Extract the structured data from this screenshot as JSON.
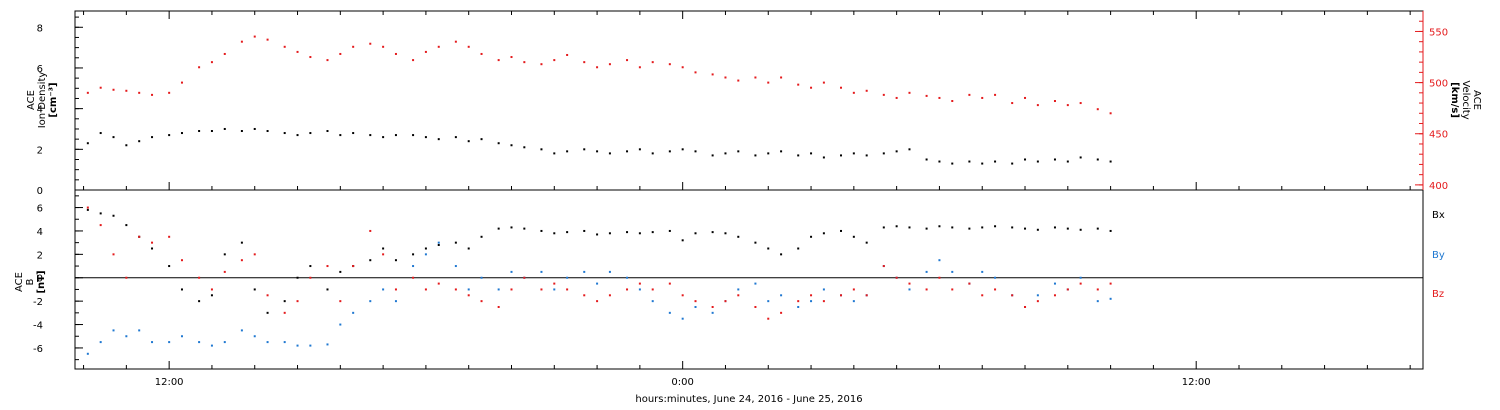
{
  "colors": {
    "black": "#000000",
    "red": "#e41a1c",
    "blue": "#1f78d1"
  },
  "chart_data": [
    {
      "type": "scatter",
      "panel": "top",
      "ylabel_left": [
        "ACE",
        "Ion Density",
        "[cm⁻³]"
      ],
      "ylabel_right": [
        "ACE",
        "Velocity",
        "[km/s]"
      ],
      "x_unit": "hours after June 24, 2016 00:00",
      "xlim": [
        9.8,
        41.3
      ],
      "ylim_left": [
        0,
        8.8
      ],
      "yticks_left": [
        0,
        2,
        4,
        6,
        8
      ],
      "ylim_right": [
        395,
        570
      ],
      "yticks_right": [
        400,
        450,
        500,
        550
      ],
      "series": [
        {
          "quantity": "density",
          "axis": "left",
          "color": "#000000",
          "x": [
            10.1,
            10.4,
            10.7,
            11.0,
            11.3,
            11.6,
            12.0,
            12.3,
            12.7,
            13.0,
            13.3,
            13.7,
            14.0,
            14.3,
            14.7,
            15.0,
            15.3,
            15.7,
            16.0,
            16.3,
            16.7,
            17.0,
            17.3,
            17.7,
            18.0,
            18.3,
            18.7,
            19.0,
            19.3,
            19.7,
            20.0,
            20.3,
            20.7,
            21.0,
            21.3,
            21.7,
            22.0,
            22.3,
            22.7,
            23.0,
            23.3,
            23.7,
            24.0,
            24.3,
            24.7,
            25.0,
            25.3,
            25.7,
            26.0,
            26.3,
            26.7,
            27.0,
            27.3,
            27.7,
            28.0,
            28.3,
            28.7,
            29.0,
            29.3,
            29.7,
            30.0,
            30.3,
            30.7,
            31.0,
            31.3,
            31.7,
            32.0,
            32.3,
            32.7,
            33.0,
            33.3,
            33.7,
            34.0
          ],
          "y": [
            2.3,
            2.8,
            2.6,
            2.2,
            2.4,
            2.6,
            2.7,
            2.8,
            2.9,
            2.9,
            3.0,
            2.9,
            3.0,
            2.9,
            2.8,
            2.7,
            2.8,
            2.9,
            2.7,
            2.8,
            2.7,
            2.6,
            2.7,
            2.7,
            2.6,
            2.5,
            2.6,
            2.4,
            2.5,
            2.3,
            2.2,
            2.1,
            2.0,
            1.8,
            1.9,
            2.0,
            1.9,
            1.8,
            1.9,
            2.0,
            1.8,
            1.9,
            2.0,
            1.9,
            1.7,
            1.8,
            1.9,
            1.7,
            1.8,
            1.9,
            1.7,
            1.8,
            1.6,
            1.7,
            1.8,
            1.7,
            1.8,
            1.9,
            2.0,
            1.5,
            1.4,
            1.3,
            1.4,
            1.3,
            1.4,
            1.3,
            1.5,
            1.4,
            1.5,
            1.4,
            1.6,
            1.5,
            1.4
          ]
        },
        {
          "quantity": "velocity",
          "axis": "right",
          "color": "#e41a1c",
          "x": [
            10.1,
            10.4,
            10.7,
            11.0,
            11.3,
            11.6,
            12.0,
            12.3,
            12.7,
            13.0,
            13.3,
            13.7,
            14.0,
            14.3,
            14.7,
            15.0,
            15.3,
            15.7,
            16.0,
            16.3,
            16.7,
            17.0,
            17.3,
            17.7,
            18.0,
            18.3,
            18.7,
            19.0,
            19.3,
            19.7,
            20.0,
            20.3,
            20.7,
            21.0,
            21.3,
            21.7,
            22.0,
            22.3,
            22.7,
            23.0,
            23.3,
            23.7,
            24.0,
            24.3,
            24.7,
            25.0,
            25.3,
            25.7,
            26.0,
            26.3,
            26.7,
            27.0,
            27.3,
            27.7,
            28.0,
            28.3,
            28.7,
            29.0,
            29.3,
            29.7,
            30.0,
            30.3,
            30.7,
            31.0,
            31.3,
            31.7,
            32.0,
            32.3,
            32.7,
            33.0,
            33.3,
            33.7,
            34.0
          ],
          "y": [
            490,
            495,
            493,
            492,
            490,
            488,
            490,
            500,
            515,
            520,
            528,
            540,
            545,
            542,
            535,
            530,
            525,
            522,
            528,
            535,
            538,
            535,
            528,
            522,
            530,
            535,
            540,
            535,
            528,
            522,
            525,
            520,
            518,
            522,
            527,
            520,
            515,
            518,
            522,
            515,
            520,
            518,
            515,
            510,
            508,
            505,
            502,
            505,
            500,
            505,
            498,
            495,
            500,
            495,
            490,
            492,
            488,
            485,
            490,
            487,
            485,
            482,
            488,
            485,
            488,
            480,
            485,
            478,
            482,
            478,
            480,
            474,
            470
          ]
        }
      ]
    },
    {
      "type": "scatter",
      "panel": "bottom",
      "ylabel_left": [
        "ACE",
        "B",
        "[nT]"
      ],
      "x_unit": "hours after June 24, 2016 00:00",
      "xlim": [
        9.8,
        41.3
      ],
      "ylim": [
        -7.8,
        7.5
      ],
      "yticks": [
        -6,
        -4,
        -2,
        0,
        2,
        4,
        6
      ],
      "zero_line": true,
      "xtick_labels": [
        {
          "x": 12,
          "label": "12:00"
        },
        {
          "x": 24,
          "label": "0:00"
        },
        {
          "x": 36,
          "label": "12:00"
        }
      ],
      "xlabel": "hours:minutes, June 24, 2016 - June 25, 2016",
      "series": [
        {
          "name": "Bx",
          "color": "#000000",
          "x": [
            10.1,
            10.4,
            10.7,
            11.0,
            11.3,
            11.6,
            12.0,
            12.3,
            12.7,
            13.0,
            13.3,
            13.7,
            14.0,
            14.3,
            14.7,
            15.0,
            15.3,
            15.7,
            16.0,
            16.3,
            16.7,
            17.0,
            17.3,
            17.7,
            18.0,
            18.3,
            18.7,
            19.0,
            19.3,
            19.7,
            20.0,
            20.3,
            20.7,
            21.0,
            21.3,
            21.7,
            22.0,
            22.3,
            22.7,
            23.0,
            23.3,
            23.7,
            24.0,
            24.3,
            24.7,
            25.0,
            25.3,
            25.7,
            26.0,
            26.3,
            26.7,
            27.0,
            27.3,
            27.7,
            28.0,
            28.3,
            28.7,
            29.0,
            29.3,
            29.7,
            30.0,
            30.3,
            30.7,
            31.0,
            31.3,
            31.7,
            32.0,
            32.3,
            32.7,
            33.0,
            33.3,
            33.7,
            34.0
          ],
          "y": [
            5.8,
            5.5,
            5.3,
            4.5,
            3.5,
            2.5,
            1.0,
            -1.0,
            -2.0,
            -1.5,
            2.0,
            3.0,
            -1.0,
            -3.0,
            -2.0,
            0.0,
            1.0,
            -1.0,
            0.5,
            1.0,
            1.5,
            2.5,
            1.5,
            2.0,
            2.5,
            2.8,
            3.0,
            2.5,
            3.5,
            4.2,
            4.3,
            4.2,
            4.0,
            3.8,
            3.9,
            4.0,
            3.7,
            3.8,
            3.9,
            3.8,
            3.9,
            4.0,
            3.2,
            3.8,
            3.9,
            3.8,
            3.5,
            3.0,
            2.5,
            2.0,
            2.5,
            3.5,
            3.8,
            4.0,
            3.5,
            3.0,
            4.3,
            4.4,
            4.3,
            4.2,
            4.4,
            4.3,
            4.2,
            4.3,
            4.4,
            4.3,
            4.2,
            4.1,
            4.3,
            4.2,
            4.1,
            4.2,
            4.0
          ]
        },
        {
          "name": "By",
          "color": "#1f78d1",
          "x": [
            10.1,
            10.4,
            10.7,
            11.0,
            11.3,
            11.6,
            12.0,
            12.3,
            12.7,
            13.0,
            13.3,
            13.7,
            14.0,
            14.3,
            14.7,
            15.0,
            15.3,
            15.7,
            16.0,
            16.3,
            16.7,
            17.0,
            17.3,
            17.7,
            18.0,
            18.3,
            18.7,
            19.0,
            19.3,
            19.7,
            20.0,
            20.3,
            20.7,
            21.0,
            21.3,
            21.7,
            22.0,
            22.3,
            22.7,
            23.0,
            23.3,
            23.7,
            24.0,
            24.3,
            24.7,
            25.0,
            25.3,
            25.7,
            26.0,
            26.3,
            26.7,
            27.0,
            27.3,
            27.7,
            28.0,
            28.3,
            28.7,
            29.0,
            29.3,
            29.7,
            30.0,
            30.3,
            30.7,
            31.0,
            31.3,
            31.7,
            32.0,
            32.3,
            32.7,
            33.0,
            33.3,
            33.7,
            34.0
          ],
          "y": [
            -6.5,
            -5.5,
            -4.5,
            -5.0,
            -4.5,
            -5.5,
            -5.5,
            -5.0,
            -5.5,
            -5.8,
            -5.5,
            -4.5,
            -5.0,
            -5.5,
            -5.5,
            -5.8,
            -5.8,
            -5.7,
            -4.0,
            -3.0,
            -2.0,
            -1.0,
            -2.0,
            1.0,
            2.0,
            3.0,
            1.0,
            -1.0,
            0.0,
            -1.0,
            0.5,
            0.0,
            0.5,
            -1.0,
            0.0,
            0.5,
            -0.5,
            0.5,
            0.0,
            -1.0,
            -2.0,
            -3.0,
            -3.5,
            -2.5,
            -3.0,
            -2.0,
            -1.0,
            -0.5,
            -2.0,
            -1.5,
            -2.5,
            -2.0,
            -1.0,
            -1.5,
            -2.0,
            -1.5,
            1.0,
            0.0,
            -1.0,
            0.5,
            1.5,
            0.5,
            -0.5,
            0.5,
            0.0,
            -1.5,
            -2.5,
            -1.5,
            -0.5,
            -1.0,
            0.0,
            -2.0,
            -1.8
          ]
        },
        {
          "name": "Bz",
          "color": "#e41a1c",
          "x": [
            10.1,
            10.4,
            10.7,
            11.0,
            11.3,
            11.6,
            12.0,
            12.3,
            12.7,
            13.0,
            13.3,
            13.7,
            14.0,
            14.3,
            14.7,
            15.0,
            15.3,
            15.7,
            16.0,
            16.3,
            16.7,
            17.0,
            17.3,
            17.7,
            18.0,
            18.3,
            18.7,
            19.0,
            19.3,
            19.7,
            20.0,
            20.3,
            20.7,
            21.0,
            21.3,
            21.7,
            22.0,
            22.3,
            22.7,
            23.0,
            23.3,
            23.7,
            24.0,
            24.3,
            24.7,
            25.0,
            25.3,
            25.7,
            26.0,
            26.3,
            26.7,
            27.0,
            27.3,
            27.7,
            28.0,
            28.3,
            28.7,
            29.0,
            29.3,
            29.7,
            30.0,
            30.3,
            30.7,
            31.0,
            31.3,
            31.7,
            32.0,
            32.3,
            32.7,
            33.0,
            33.3,
            33.7,
            34.0
          ],
          "y": [
            6.0,
            4.5,
            2.0,
            0.0,
            3.5,
            3.0,
            3.5,
            1.5,
            0.0,
            -1.0,
            0.5,
            1.5,
            2.0,
            -1.5,
            -3.0,
            -2.0,
            0.0,
            1.0,
            -2.0,
            1.0,
            4.0,
            2.0,
            -1.0,
            0.0,
            -1.0,
            -0.5,
            -1.0,
            -1.5,
            -2.0,
            -2.5,
            -1.0,
            0.0,
            -1.0,
            -0.5,
            -1.0,
            -1.5,
            -2.0,
            -1.5,
            -1.0,
            -0.5,
            -1.0,
            -0.5,
            -1.5,
            -2.0,
            -2.5,
            -2.0,
            -1.5,
            -2.5,
            -3.5,
            -3.0,
            -2.0,
            -1.5,
            -2.0,
            -1.5,
            -1.0,
            -1.5,
            1.0,
            0.0,
            -0.5,
            -1.0,
            0.0,
            -1.0,
            -0.5,
            -1.5,
            -1.0,
            -1.5,
            -2.5,
            -2.0,
            -1.5,
            -1.0,
            -0.5,
            -1.0,
            -0.5
          ]
        }
      ]
    }
  ]
}
